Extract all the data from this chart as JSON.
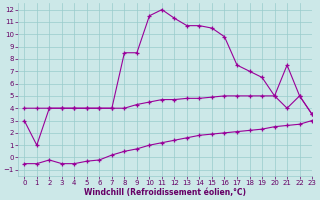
{
  "line1_x": [
    0,
    1,
    2,
    3,
    4,
    5,
    6,
    7,
    8,
    9,
    10,
    11,
    12,
    13,
    14,
    15,
    16,
    17,
    18,
    19,
    20,
    21,
    22,
    23
  ],
  "line1_y": [
    3,
    1,
    4,
    4,
    4,
    4,
    4,
    4,
    8.5,
    8.5,
    11.5,
    12,
    11.3,
    10.7,
    10.7,
    10.5,
    9.8,
    7.5,
    7.0,
    6.5,
    5.0,
    7.5,
    5.0,
    3.5
  ],
  "line2_x": [
    0,
    1,
    2,
    3,
    4,
    5,
    6,
    7,
    8,
    9,
    10,
    11,
    12,
    13,
    14,
    15,
    16,
    17,
    18,
    19,
    20,
    21,
    22,
    23
  ],
  "line2_y": [
    4,
    4,
    4,
    4,
    4,
    4,
    4,
    4,
    4,
    4.3,
    4.5,
    4.7,
    4.7,
    4.8,
    4.8,
    4.9,
    5.0,
    5.0,
    5.0,
    5.0,
    5.0,
    4.0,
    5.0,
    3.5
  ],
  "line3_x": [
    0,
    1,
    2,
    3,
    4,
    5,
    6,
    7,
    8,
    9,
    10,
    11,
    12,
    13,
    14,
    15,
    16,
    17,
    18,
    19,
    20,
    21,
    22,
    23
  ],
  "line3_y": [
    -0.5,
    -0.5,
    -0.2,
    -0.5,
    -0.5,
    -0.3,
    -0.2,
    0.2,
    0.5,
    0.7,
    1.0,
    1.2,
    1.4,
    1.6,
    1.8,
    1.9,
    2.0,
    2.1,
    2.2,
    2.3,
    2.5,
    2.6,
    2.7,
    3.0
  ],
  "line_color": "#990099",
  "background_color": "#cce8e8",
  "grid_color": "#99cccc",
  "xlabel": "Windchill (Refroidissement éolien,°C)",
  "xlim": [
    -0.5,
    23
  ],
  "ylim": [
    -1.5,
    12.5
  ],
  "xticks": [
    0,
    1,
    2,
    3,
    4,
    5,
    6,
    7,
    8,
    9,
    10,
    11,
    12,
    13,
    14,
    15,
    16,
    17,
    18,
    19,
    20,
    21,
    22,
    23
  ],
  "yticks": [
    -1,
    0,
    1,
    2,
    3,
    4,
    5,
    6,
    7,
    8,
    9,
    10,
    11,
    12
  ]
}
